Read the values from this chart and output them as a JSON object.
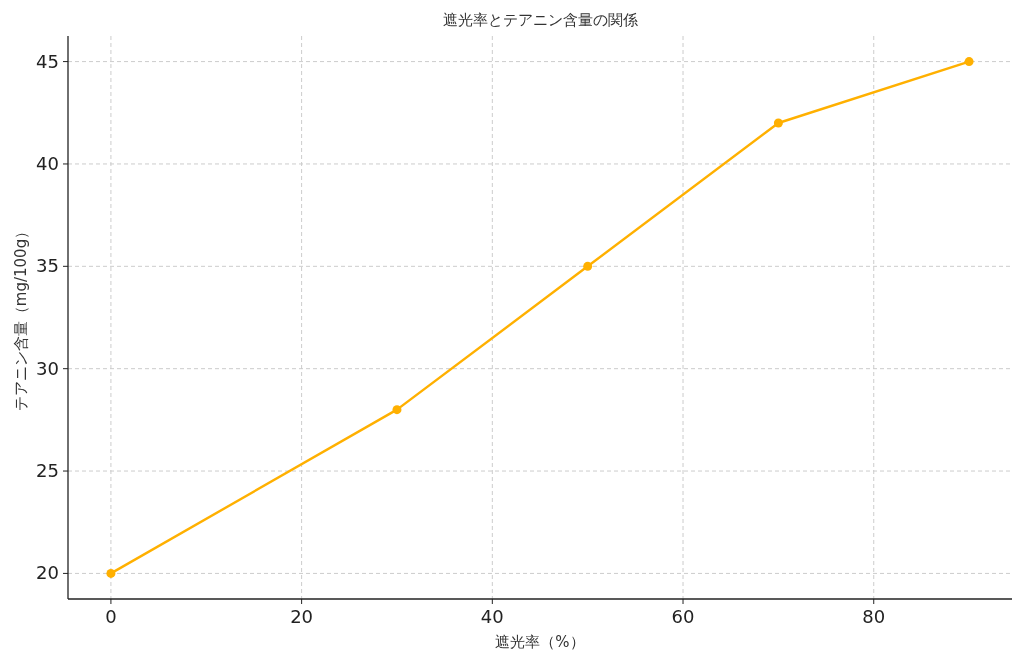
{
  "chart_data": {
    "type": "line",
    "title": "遮光率とテアニン含量の関係",
    "xlabel": "遮光率（%）",
    "ylabel": "テアニン含量（mg/100g）",
    "x": [
      0,
      30,
      50,
      70,
      90
    ],
    "series": [
      {
        "color": "#ffb000",
        "values": [
          20,
          28,
          35,
          42,
          45
        ]
      }
    ],
    "xlim": [
      -4.5,
      94.5
    ],
    "ylim": [
      18.75,
      46.25
    ],
    "xticks": [
      0,
      20,
      40,
      60,
      80
    ],
    "yticks": [
      20,
      25,
      30,
      35,
      40,
      45
    ],
    "grid": true,
    "marker": "circle",
    "line_style": "solid"
  }
}
